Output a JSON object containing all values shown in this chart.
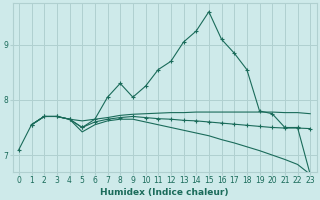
{
  "xlabel": "Humidex (Indice chaleur)",
  "xlim": [
    -0.5,
    23.5
  ],
  "ylim": [
    6.7,
    9.75
  ],
  "yticks": [
    7,
    8,
    9
  ],
  "xticks": [
    0,
    1,
    2,
    3,
    4,
    5,
    6,
    7,
    8,
    9,
    10,
    11,
    12,
    13,
    14,
    15,
    16,
    17,
    18,
    19,
    20,
    21,
    22,
    23
  ],
  "background_color": "#ceeaea",
  "grid_color": "#b0d0d0",
  "line_color": "#1a6b5a",
  "lines": [
    {
      "x": [
        0,
        1,
        2,
        3,
        4,
        5,
        6,
        7,
        8,
        9,
        10,
        11,
        12,
        13,
        14,
        15,
        16,
        17,
        18,
        19,
        20,
        21,
        22,
        23
      ],
      "y": [
        7.1,
        7.55,
        7.7,
        7.7,
        7.65,
        7.5,
        7.65,
        8.05,
        8.3,
        8.05,
        8.25,
        8.55,
        8.7,
        9.05,
        9.25,
        9.6,
        9.1,
        8.85,
        8.55,
        7.8,
        7.75,
        7.5,
        7.5,
        6.65
      ],
      "marker": "+"
    },
    {
      "x": [
        1,
        2,
        3,
        4,
        5,
        6,
        7,
        8,
        9,
        10,
        11,
        12,
        13,
        14,
        15,
        16,
        17,
        18,
        19,
        20,
        21,
        22,
        23
      ],
      "y": [
        7.55,
        7.7,
        7.7,
        7.65,
        7.62,
        7.65,
        7.68,
        7.72,
        7.74,
        7.75,
        7.76,
        7.77,
        7.77,
        7.78,
        7.78,
        7.78,
        7.78,
        7.78,
        7.78,
        7.78,
        7.77,
        7.77,
        7.75
      ],
      "marker": null
    },
    {
      "x": [
        1,
        2,
        3,
        4,
        5,
        6,
        7,
        8,
        9,
        10,
        11,
        12,
        13,
        14,
        15,
        16,
        17,
        18,
        19,
        20,
        21,
        22,
        23
      ],
      "y": [
        7.55,
        7.7,
        7.7,
        7.65,
        7.42,
        7.55,
        7.62,
        7.65,
        7.65,
        7.6,
        7.55,
        7.5,
        7.45,
        7.4,
        7.35,
        7.28,
        7.22,
        7.15,
        7.08,
        7.0,
        6.92,
        6.83,
        6.65
      ],
      "marker": null
    },
    {
      "x": [
        1,
        2,
        3,
        4,
        5,
        6,
        7,
        8,
        9,
        10,
        11,
        12,
        13,
        14,
        15,
        16,
        17,
        18,
        19,
        20,
        21,
        22,
        23
      ],
      "y": [
        7.55,
        7.7,
        7.7,
        7.65,
        7.5,
        7.6,
        7.65,
        7.68,
        7.7,
        7.68,
        7.66,
        7.65,
        7.63,
        7.62,
        7.6,
        7.58,
        7.56,
        7.54,
        7.52,
        7.5,
        7.49,
        7.49,
        7.48
      ],
      "marker": "+"
    }
  ]
}
